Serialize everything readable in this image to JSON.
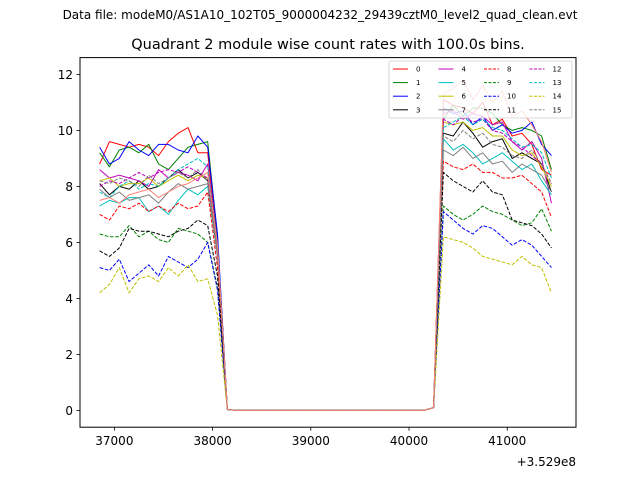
{
  "chart_data": {
    "type": "line",
    "suptitle": "Data file: modeM0/AS1A10_102T05_9000004232_29439cztM0_level2_quad_clean.evt",
    "title": "Quadrant 2 module wise count rates with 100.0s bins.",
    "xlabel": "",
    "ylabel": "",
    "x_offset_label": "+3.529e8",
    "xlim": [
      36650,
      41700
    ],
    "ylim": [
      -0.6,
      12.6
    ],
    "xticks": [
      37000,
      38000,
      39000,
      40000,
      41000
    ],
    "xtick_labels": [
      "37000",
      "38000",
      "39000",
      "40000",
      "41000"
    ],
    "yticks": [
      0,
      2,
      4,
      6,
      8,
      10,
      12
    ],
    "ytick_labels": [
      "0",
      "2",
      "4",
      "6",
      "8",
      "10",
      "12"
    ],
    "x": [
      36850,
      36950,
      37050,
      37150,
      37250,
      37350,
      37450,
      37550,
      37650,
      37750,
      37850,
      37950,
      38050,
      38150,
      38250,
      38350,
      38450,
      38550,
      38650,
      38750,
      38850,
      38950,
      39050,
      39150,
      39250,
      39350,
      39450,
      39550,
      39650,
      39750,
      39850,
      39950,
      40050,
      40150,
      40250,
      40350,
      40450,
      40550,
      40650,
      40750,
      40850,
      40950,
      41050,
      41150,
      41250,
      41350,
      41450
    ],
    "legend": {
      "location": "top-right",
      "columns": 4
    },
    "series": [
      {
        "name": "0",
        "color": "#ff0000",
        "dash": "solid",
        "values": [
          8.8,
          9.6,
          9.5,
          9.4,
          9.5,
          9.4,
          9.1,
          9.6,
          9.9,
          10.1,
          9.2,
          9.2,
          6.0,
          0.03,
          0,
          0,
          0,
          0,
          0,
          0,
          0,
          0,
          0,
          0,
          0,
          0,
          0,
          0,
          0,
          0,
          0,
          0,
          0,
          0,
          0.1,
          11.1,
          10.9,
          10.8,
          10.6,
          11.0,
          10.2,
          10.4,
          9.8,
          9.9,
          9.5,
          8.6,
          8.4
        ]
      },
      {
        "name": "1",
        "color": "#008000",
        "dash": "solid",
        "values": [
          9.2,
          8.7,
          9.3,
          9.4,
          9.2,
          9.5,
          8.8,
          8.6,
          9.0,
          9.4,
          9.5,
          9.6,
          6.2,
          0.03,
          0,
          0,
          0,
          0,
          0,
          0,
          0,
          0,
          0,
          0,
          0,
          0,
          0,
          0,
          0,
          0,
          0,
          0,
          0,
          0,
          0.1,
          10.4,
          10.9,
          10.5,
          10.8,
          10.8,
          10.6,
          10.2,
          10.0,
          10.1,
          10.0,
          9.8,
          8.6
        ]
      },
      {
        "name": "2",
        "color": "#0000ff",
        "dash": "solid",
        "values": [
          9.4,
          8.8,
          9.0,
          9.6,
          9.3,
          9.1,
          9.5,
          9.5,
          9.3,
          9.2,
          9.8,
          9.4,
          6.3,
          0.03,
          0,
          0,
          0,
          0,
          0,
          0,
          0,
          0,
          0,
          0,
          0,
          0,
          0,
          0,
          0,
          0,
          0,
          0,
          0,
          0,
          0.1,
          10.8,
          10.6,
          10.7,
          10.2,
          10.5,
          10.0,
          10.2,
          9.9,
          10.0,
          10.3,
          9.5,
          9.1
        ]
      },
      {
        "name": "3",
        "color": "#000000",
        "dash": "solid",
        "values": [
          8.1,
          7.7,
          8.0,
          7.9,
          8.2,
          7.9,
          8.0,
          8.3,
          8.6,
          8.3,
          8.5,
          8.2,
          5.6,
          0.03,
          0,
          0,
          0,
          0,
          0,
          0,
          0,
          0,
          0,
          0,
          0,
          0,
          0,
          0,
          0,
          0,
          0,
          0,
          0,
          0,
          0.1,
          9.9,
          9.8,
          10.3,
          9.9,
          9.4,
          9.6,
          9.7,
          9.0,
          9.2,
          9.0,
          8.8,
          7.8
        ]
      },
      {
        "name": "4",
        "color": "#bf00bf",
        "dash": "solid",
        "values": [
          8.6,
          8.3,
          8.4,
          8.3,
          8.2,
          8.0,
          8.6,
          8.3,
          8.5,
          8.4,
          8.2,
          8.8,
          5.9,
          0.03,
          0,
          0,
          0,
          0,
          0,
          0,
          0,
          0,
          0,
          0,
          0,
          0,
          0,
          0,
          0,
          0,
          0,
          0,
          0,
          0,
          0.1,
          10.6,
          10.7,
          10.4,
          10.6,
          10.5,
          10.2,
          10.3,
          9.6,
          9.3,
          9.6,
          9.0,
          7.4
        ]
      },
      {
        "name": "5",
        "color": "#00bfbf",
        "dash": "solid",
        "values": [
          7.3,
          7.5,
          7.4,
          7.6,
          7.6,
          7.1,
          7.3,
          7.0,
          7.5,
          7.9,
          7.7,
          8.0,
          5.5,
          0.03,
          0,
          0,
          0,
          0,
          0,
          0,
          0,
          0,
          0,
          0,
          0,
          0,
          0,
          0,
          0,
          0,
          0,
          0,
          0,
          0,
          0.1,
          9.7,
          9.3,
          9.5,
          9.2,
          8.8,
          9.0,
          9.2,
          8.9,
          8.6,
          8.8,
          8.2,
          7.7
        ]
      },
      {
        "name": "6",
        "color": "#bfbf00",
        "dash": "solid",
        "values": [
          8.2,
          8.3,
          8.0,
          8.1,
          8.1,
          8.3,
          8.0,
          8.2,
          8.4,
          8.2,
          8.4,
          8.3,
          5.8,
          0.03,
          0,
          0,
          0,
          0,
          0,
          0,
          0,
          0,
          0,
          0,
          0,
          0,
          0,
          0,
          0,
          0,
          0,
          0,
          0,
          0,
          0.1,
          10.3,
          10.2,
          10.3,
          10.0,
          10.1,
          9.8,
          9.8,
          9.3,
          9.1,
          9.2,
          8.7,
          8.0
        ]
      },
      {
        "name": "7",
        "color": "#7f7f7f",
        "dash": "solid",
        "values": [
          7.9,
          7.6,
          7.8,
          7.5,
          7.6,
          7.7,
          7.4,
          7.8,
          8.1,
          7.9,
          8.0,
          8.1,
          5.5,
          0.03,
          0,
          0,
          0,
          0,
          0,
          0,
          0,
          0,
          0,
          0,
          0,
          0,
          0,
          0,
          0,
          0,
          0,
          0,
          0,
          0,
          0.1,
          9.3,
          9.1,
          9.4,
          9.0,
          9.2,
          8.8,
          8.9,
          8.5,
          8.8,
          8.6,
          8.4,
          7.8
        ]
      },
      {
        "name": "8",
        "color": "#ff0000",
        "dash": "dashed",
        "values": [
          7.0,
          6.8,
          7.3,
          7.2,
          7.4,
          7.1,
          7.3,
          7.1,
          7.4,
          7.2,
          7.3,
          7.8,
          5.1,
          0.03,
          0,
          0,
          0,
          0,
          0,
          0,
          0,
          0,
          0,
          0,
          0,
          0,
          0,
          0,
          0,
          0,
          0,
          0,
          0,
          0,
          0.1,
          8.9,
          8.7,
          8.6,
          8.8,
          8.5,
          8.5,
          8.3,
          8.3,
          8.4,
          8.1,
          7.8,
          6.9
        ]
      },
      {
        "name": "9",
        "color": "#008000",
        "dash": "dashed",
        "values": [
          6.3,
          6.2,
          6.2,
          6.6,
          6.2,
          6.4,
          6.1,
          6.0,
          6.5,
          6.4,
          6.3,
          6.0,
          4.4,
          0.03,
          0,
          0,
          0,
          0,
          0,
          0,
          0,
          0,
          0,
          0,
          0,
          0,
          0,
          0,
          0,
          0,
          0,
          0,
          0,
          0,
          0.1,
          7.3,
          7.0,
          6.8,
          7.0,
          7.3,
          7.1,
          7.0,
          6.8,
          6.6,
          6.7,
          7.2,
          6.4
        ]
      },
      {
        "name": "10",
        "color": "#0000ff",
        "dash": "dashed",
        "values": [
          5.1,
          5.0,
          5.4,
          4.6,
          4.9,
          5.2,
          4.8,
          5.5,
          5.3,
          5.1,
          5.4,
          6.0,
          4.3,
          0.03,
          0,
          0,
          0,
          0,
          0,
          0,
          0,
          0,
          0,
          0,
          0,
          0,
          0,
          0,
          0,
          0,
          0,
          0,
          0,
          0,
          0.1,
          7.1,
          6.8,
          6.5,
          6.3,
          6.6,
          6.5,
          6.2,
          5.9,
          6.1,
          5.9,
          5.5,
          5.1
        ]
      },
      {
        "name": "11",
        "color": "#000000",
        "dash": "dashed",
        "values": [
          5.7,
          5.5,
          5.8,
          6.5,
          6.4,
          6.4,
          6.3,
          6.2,
          6.4,
          6.5,
          6.8,
          6.6,
          4.8,
          0.03,
          0,
          0,
          0,
          0,
          0,
          0,
          0,
          0,
          0,
          0,
          0,
          0,
          0,
          0,
          0,
          0,
          0,
          0,
          0,
          0,
          0.1,
          8.5,
          8.2,
          8.0,
          7.8,
          8.2,
          7.8,
          7.7,
          6.8,
          6.7,
          6.6,
          6.3,
          5.8
        ]
      },
      {
        "name": "12",
        "color": "#bf00bf",
        "dash": "dashed",
        "values": [
          8.0,
          8.2,
          8.1,
          8.3,
          8.5,
          8.3,
          8.5,
          8.6,
          8.5,
          8.7,
          8.5,
          8.3,
          5.9,
          0.03,
          0,
          0,
          0,
          0,
          0,
          0,
          0,
          0,
          0,
          0,
          0,
          0,
          0,
          0,
          0,
          0,
          0,
          0,
          0,
          0,
          0.1,
          10.4,
          10.2,
          10.5,
          10.3,
          10.4,
          10.0,
          9.9,
          9.6,
          9.4,
          9.1,
          8.8,
          8.1
        ]
      },
      {
        "name": "13",
        "color": "#00bfbf",
        "dash": "dashed",
        "values": [
          7.8,
          7.6,
          8.0,
          8.2,
          7.9,
          8.1,
          8.0,
          8.3,
          8.6,
          8.8,
          9.0,
          8.7,
          5.9,
          0.03,
          0,
          0,
          0,
          0,
          0,
          0,
          0,
          0,
          0,
          0,
          0,
          0,
          0,
          0,
          0,
          0,
          0,
          0,
          0,
          0,
          0.1,
          10.1,
          10.3,
          10.5,
          10.2,
          10.4,
          10.1,
          10.0,
          9.7,
          9.4,
          9.5,
          9.2,
          8.3
        ]
      },
      {
        "name": "14",
        "color": "#bfbf00",
        "dash": "dashed",
        "values": [
          4.2,
          4.5,
          5.1,
          4.2,
          4.7,
          4.8,
          4.6,
          5.1,
          4.8,
          5.2,
          4.6,
          4.7,
          3.4,
          0.03,
          0,
          0,
          0,
          0,
          0,
          0,
          0,
          0,
          0,
          0,
          0,
          0,
          0,
          0,
          0,
          0,
          0,
          0,
          0,
          0,
          0.1,
          6.2,
          6.1,
          6.0,
          5.8,
          5.5,
          5.4,
          5.3,
          5.2,
          5.5,
          5.2,
          5.1,
          4.2
        ]
      },
      {
        "name": "15",
        "color": "#7f7f7f",
        "dash": "dashed",
        "values": [
          8.2,
          8.1,
          8.3,
          8.2,
          8.0,
          8.4,
          8.1,
          8.3,
          8.5,
          8.3,
          8.6,
          8.2,
          5.7,
          0.03,
          0,
          0,
          0,
          0,
          0,
          0,
          0,
          0,
          0,
          0,
          0,
          0,
          0,
          0,
          0,
          0,
          0,
          0,
          0,
          0,
          0.1,
          9.8,
          9.6,
          10.0,
          9.7,
          9.9,
          9.5,
          9.4,
          9.1,
          9.0,
          9.3,
          8.8,
          8.1
        ]
      },
      {
        "name": "",
        "color": "#fa8072",
        "dash": "solid",
        "values": [
          7.5,
          7.6,
          7.4,
          7.7,
          7.8,
          7.9,
          7.6,
          7.8,
          8.0,
          8.1,
          8.3,
          8.5,
          5.9,
          0.03,
          0,
          0,
          0,
          0,
          0,
          0,
          0,
          0,
          0,
          0,
          0,
          0,
          0,
          0,
          0,
          0,
          0,
          0,
          0,
          0,
          0.1,
          11.3,
          11.5,
          11.8,
          11.1,
          11.6,
          11.0,
          11.4,
          10.5,
          10.7,
          10.2,
          9.6,
          8.5
        ]
      }
    ]
  }
}
